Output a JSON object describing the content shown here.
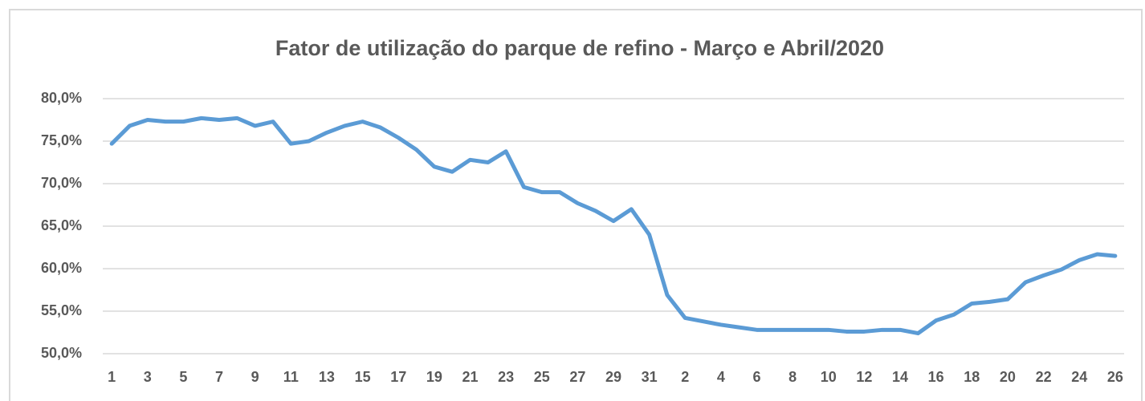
{
  "chart_data": {
    "type": "line",
    "title": "Fator de utilização do parque de refino - Março e Abril/2020",
    "categories": [
      "1",
      null,
      "3",
      null,
      "5",
      null,
      "7",
      null,
      "9",
      null,
      "11",
      null,
      "13",
      null,
      "15",
      null,
      "17",
      null,
      "19",
      null,
      "21",
      null,
      "23",
      null,
      "25",
      null,
      "27",
      null,
      "29",
      null,
      "31",
      null,
      "2",
      null,
      "4",
      null,
      "6",
      null,
      "8",
      null,
      "10",
      null,
      "12",
      null,
      "14",
      null,
      "16",
      null,
      "18",
      null,
      "20",
      null,
      "22",
      null,
      "24",
      null,
      "26"
    ],
    "series": [
      {
        "color": "#5b9bd5",
        "values": [
          74.7,
          76.8,
          77.5,
          77.3,
          77.3,
          77.7,
          77.5,
          77.7,
          76.8,
          77.3,
          74.7,
          75.0,
          76.0,
          76.8,
          77.3,
          76.6,
          75.4,
          74.0,
          72.0,
          71.4,
          72.8,
          72.5,
          73.8,
          69.6,
          69.0,
          69.0,
          67.7,
          66.8,
          65.6,
          67.0,
          64.0,
          56.9,
          54.2,
          53.8,
          53.4,
          53.1,
          52.8,
          52.8,
          52.8,
          52.8,
          52.8,
          52.6,
          52.6,
          52.8,
          52.8,
          52.4,
          53.9,
          54.6,
          55.9,
          56.1,
          56.4,
          58.4,
          59.2,
          59.9,
          61.0,
          61.7,
          61.5
        ]
      }
    ],
    "ylim": [
      50,
      80
    ],
    "yticks": [
      {
        "value": 50,
        "label": "50,0%"
      },
      {
        "value": 55,
        "label": "55,0%"
      },
      {
        "value": 60,
        "label": "60,0%"
      },
      {
        "value": 65,
        "label": "65,0%"
      },
      {
        "value": 70,
        "label": "70,0%"
      },
      {
        "value": 75,
        "label": "75,0%"
      },
      {
        "value": 80,
        "label": "80,0%"
      }
    ],
    "grid": true
  }
}
